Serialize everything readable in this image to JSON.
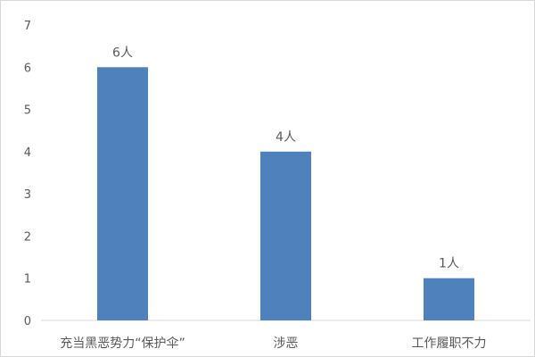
{
  "chart_data": {
    "type": "bar",
    "categories": [
      "充当黑恶势力“保护伞”",
      "涉恶",
      "工作履职不力"
    ],
    "values": [
      6,
      4,
      1
    ],
    "data_labels": [
      "6人",
      "4人",
      "1人"
    ],
    "ylim": [
      0,
      7
    ],
    "yticks": [
      "0",
      "1",
      "2",
      "3",
      "4",
      "5",
      "6",
      "7"
    ],
    "grid": false,
    "bar_color": "#4f81bd",
    "title": "",
    "xlabel": "",
    "ylabel": ""
  }
}
